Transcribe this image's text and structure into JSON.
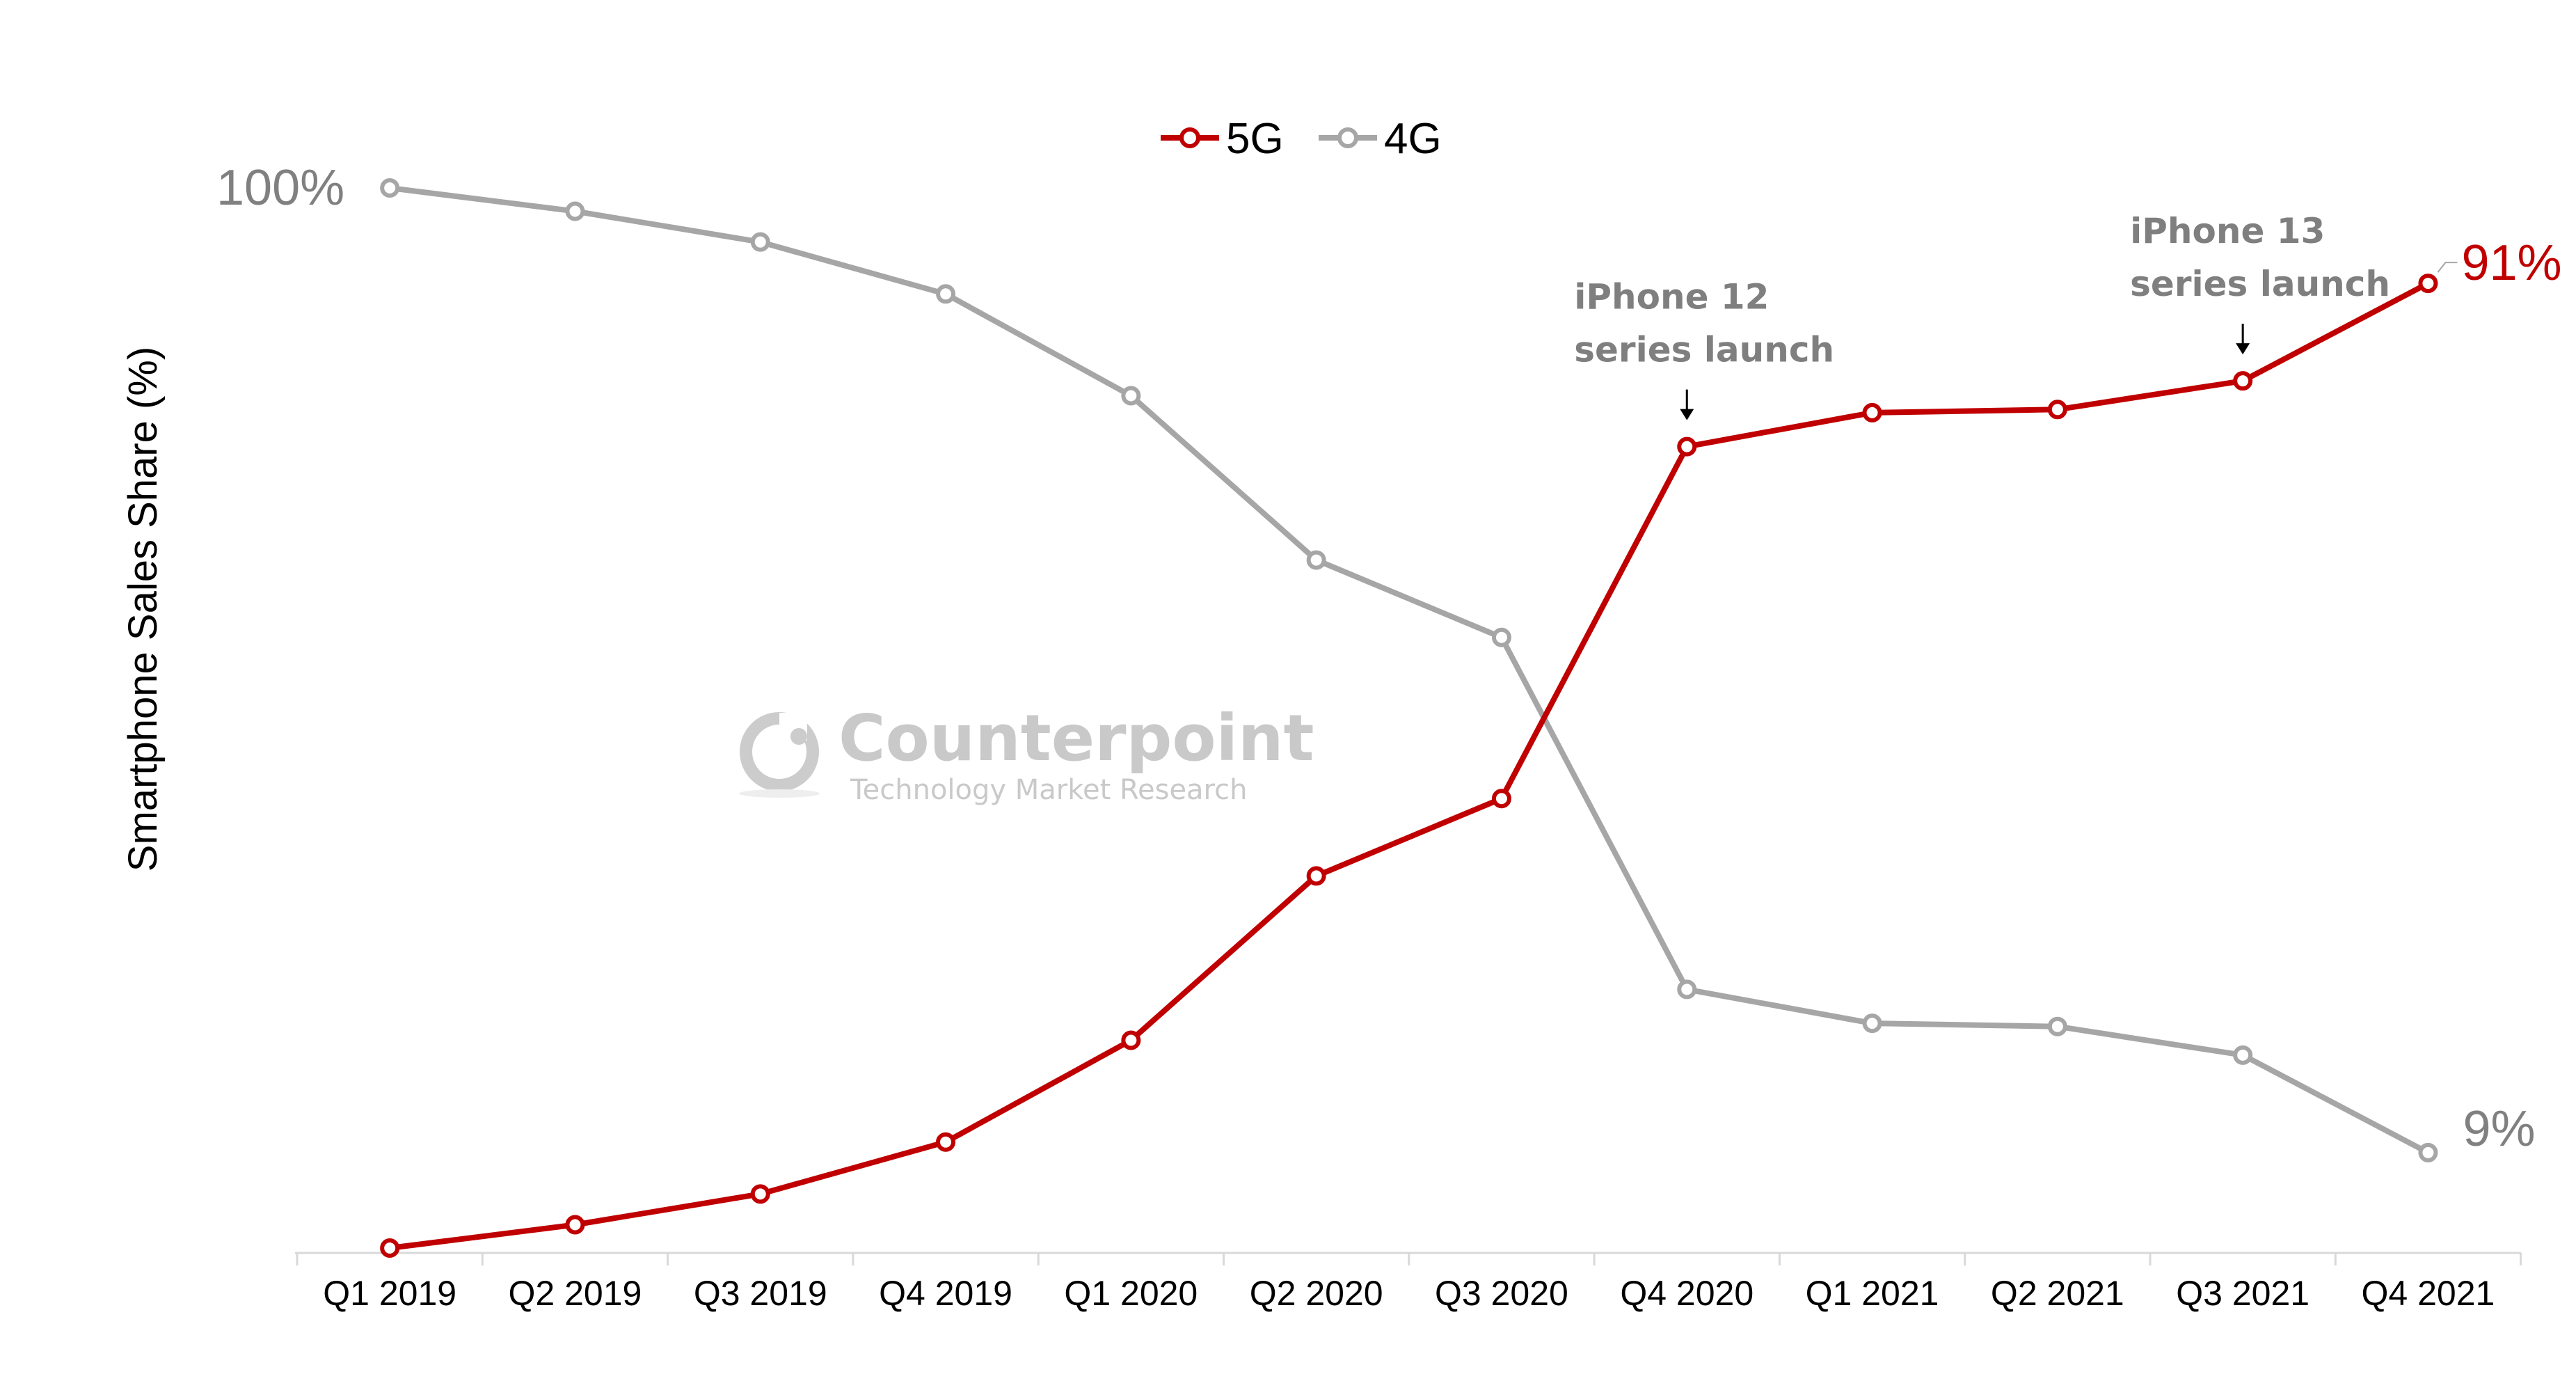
{
  "chart_data": {
    "type": "line",
    "title": "",
    "xlabel": "",
    "ylabel": "Smartphone Sales Share (%)",
    "ylim": [
      0,
      100
    ],
    "grid": false,
    "legend_position": "top-center",
    "categories": [
      "Q1 2019",
      "Q2 2019",
      "Q3 2019",
      "Q4 2019",
      "Q1 2020",
      "Q2 2020",
      "Q3 2020",
      "Q4 2020",
      "Q1 2021",
      "Q2 2021",
      "Q3 2021",
      "Q4 2021"
    ],
    "series": [
      {
        "name": "5G",
        "color": "#c00000",
        "values": [
          0,
          2.2,
          5.1,
          10,
          19.6,
          35.1,
          42.4,
          75.6,
          78.8,
          79.1,
          81.8,
          91
        ]
      },
      {
        "name": "4G",
        "color": "#a6a6a6",
        "values": [
          100,
          97.8,
          94.9,
          90,
          80.4,
          64.9,
          57.6,
          24.4,
          21.2,
          20.9,
          18.2,
          9
        ]
      }
    ],
    "value_labels": [
      {
        "text": "100%",
        "series": "4G",
        "index": 0,
        "color": "#808080"
      },
      {
        "text": "91%",
        "series": "5G",
        "index": 11,
        "color": "#c00000"
      },
      {
        "text": "9%",
        "series": "4G",
        "index": 11,
        "color": "#808080"
      }
    ],
    "annotations": [
      {
        "lines": [
          "iPhone 12",
          "series launch"
        ],
        "category": "Q4 2020"
      },
      {
        "lines": [
          "iPhone 13",
          "series launch"
        ],
        "category": "Q3 2021"
      }
    ]
  },
  "watermark": {
    "brand": "Counterpoint",
    "tagline": "Technology Market Research",
    "logo_icon": "counterpoint-logo-icon"
  }
}
